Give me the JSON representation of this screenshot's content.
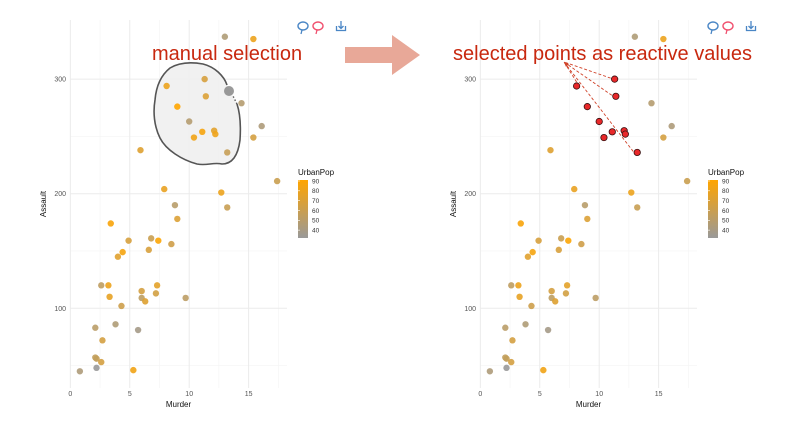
{
  "annotations": {
    "left": "manual selection",
    "right": "selected points as reactive values",
    "arrow_color": "#e8a898",
    "text_color": "#c8280f"
  },
  "toolbar": {
    "icons": [
      "lasso-select-icon",
      "lasso-deselect-icon",
      "download-icon"
    ],
    "colors": {
      "lasso_select": "#4a86c5",
      "lasso_deselect": "#f0506e",
      "download": "#4a86c5"
    }
  },
  "chart_data": [
    {
      "type": "scatter",
      "xlabel": "Murder",
      "ylabel": "Assault",
      "xticks": [
        0,
        5,
        10,
        15
      ],
      "yticks": [
        100,
        200,
        300
      ],
      "xlim": [
        -0.03,
        18.23
      ],
      "ylim": [
        30.4,
        351.6
      ],
      "grid": true,
      "legend": {
        "title": "UrbanPop",
        "ticks": [
          90,
          80,
          70,
          60,
          50,
          40
        ],
        "range": [
          32,
          91
        ],
        "colors": [
          "#999999",
          "#ffa500"
        ],
        "placement": "right"
      },
      "lasso": true,
      "points": [
        [
          13.2,
          236,
          58
        ],
        [
          10.0,
          263,
          48
        ],
        [
          8.1,
          294,
          80
        ],
        [
          8.8,
          190,
          50
        ],
        [
          9.0,
          276,
          91
        ],
        [
          7.9,
          204,
          78
        ],
        [
          3.3,
          110,
          77
        ],
        [
          5.9,
          238,
          72
        ],
        [
          15.4,
          335,
          80
        ],
        [
          17.4,
          211,
          60
        ],
        [
          5.3,
          46,
          83
        ],
        [
          2.6,
          120,
          54
        ],
        [
          10.4,
          249,
          83
        ],
        [
          7.2,
          113,
          65
        ],
        [
          2.2,
          56,
          57
        ],
        [
          6.0,
          115,
          66
        ],
        [
          9.7,
          109,
          52
        ],
        [
          15.4,
          249,
          66
        ],
        [
          2.1,
          83,
          51
        ],
        [
          11.3,
          300,
          67
        ],
        [
          4.4,
          149,
          85
        ],
        [
          12.1,
          255,
          74
        ],
        [
          2.7,
          72,
          66
        ],
        [
          16.1,
          259,
          44
        ],
        [
          9.0,
          178,
          70
        ],
        [
          6.0,
          109,
          53
        ],
        [
          4.3,
          102,
          62
        ],
        [
          12.2,
          252,
          81
        ],
        [
          2.1,
          57,
          56
        ],
        [
          7.4,
          159,
          89
        ],
        [
          11.4,
          285,
          70
        ],
        [
          11.1,
          254,
          86
        ],
        [
          13.0,
          337,
          45
        ],
        [
          0.8,
          45,
          44
        ],
        [
          7.3,
          120,
          75
        ],
        [
          6.6,
          151,
          68
        ],
        [
          4.9,
          159,
          67
        ],
        [
          6.3,
          106,
          72
        ],
        [
          3.4,
          174,
          87
        ],
        [
          14.4,
          279,
          48
        ],
        [
          3.8,
          86,
          45
        ],
        [
          13.2,
          188,
          59
        ],
        [
          12.7,
          201,
          80
        ],
        [
          3.2,
          120,
          80
        ],
        [
          2.2,
          48,
          32
        ],
        [
          8.5,
          156,
          63
        ],
        [
          4.0,
          145,
          73
        ],
        [
          5.7,
          81,
          39
        ],
        [
          2.6,
          53,
          66
        ],
        [
          6.8,
          161,
          60
        ]
      ]
    },
    {
      "type": "scatter",
      "xlabel": "Murder",
      "ylabel": "Assault",
      "xticks": [
        0,
        5,
        10,
        15
      ],
      "yticks": [
        100,
        200,
        300
      ],
      "xlim": [
        -0.03,
        18.23
      ],
      "ylim": [
        30.4,
        351.6
      ],
      "grid": true,
      "legend": {
        "title": "UrbanPop",
        "ticks": [
          90,
          80,
          70,
          60,
          50,
          40
        ],
        "range": [
          32,
          91
        ],
        "colors": [
          "#999999",
          "#ffa500"
        ],
        "placement": "right"
      },
      "selected_color": "#e8282a",
      "selected_indices": [
        0,
        1,
        2,
        4,
        12,
        19,
        21,
        27,
        30,
        31
      ],
      "points": [
        [
          13.2,
          236,
          58
        ],
        [
          10.0,
          263,
          48
        ],
        [
          8.1,
          294,
          80
        ],
        [
          8.8,
          190,
          50
        ],
        [
          9.0,
          276,
          91
        ],
        [
          7.9,
          204,
          78
        ],
        [
          3.3,
          110,
          77
        ],
        [
          5.9,
          238,
          72
        ],
        [
          15.4,
          335,
          80
        ],
        [
          17.4,
          211,
          60
        ],
        [
          5.3,
          46,
          83
        ],
        [
          2.6,
          120,
          54
        ],
        [
          10.4,
          249,
          83
        ],
        [
          7.2,
          113,
          65
        ],
        [
          2.2,
          56,
          57
        ],
        [
          6.0,
          115,
          66
        ],
        [
          9.7,
          109,
          52
        ],
        [
          15.4,
          249,
          66
        ],
        [
          2.1,
          83,
          51
        ],
        [
          11.3,
          300,
          67
        ],
        [
          4.4,
          149,
          85
        ],
        [
          12.1,
          255,
          74
        ],
        [
          2.7,
          72,
          66
        ],
        [
          16.1,
          259,
          44
        ],
        [
          9.0,
          178,
          70
        ],
        [
          6.0,
          109,
          53
        ],
        [
          4.3,
          102,
          62
        ],
        [
          12.2,
          252,
          81
        ],
        [
          2.1,
          57,
          56
        ],
        [
          7.4,
          159,
          89
        ],
        [
          11.4,
          285,
          70
        ],
        [
          11.1,
          254,
          86
        ],
        [
          13.0,
          337,
          45
        ],
        [
          0.8,
          45,
          44
        ],
        [
          7.3,
          120,
          75
        ],
        [
          6.6,
          151,
          68
        ],
        [
          4.9,
          159,
          67
        ],
        [
          6.3,
          106,
          72
        ],
        [
          3.4,
          174,
          87
        ],
        [
          14.4,
          279,
          48
        ],
        [
          3.8,
          86,
          45
        ],
        [
          13.2,
          188,
          59
        ],
        [
          12.7,
          201,
          80
        ],
        [
          3.2,
          120,
          80
        ],
        [
          2.2,
          48,
          32
        ],
        [
          8.5,
          156,
          63
        ],
        [
          4.0,
          145,
          73
        ],
        [
          5.7,
          81,
          39
        ],
        [
          2.6,
          53,
          66
        ],
        [
          6.8,
          161,
          60
        ]
      ]
    }
  ]
}
